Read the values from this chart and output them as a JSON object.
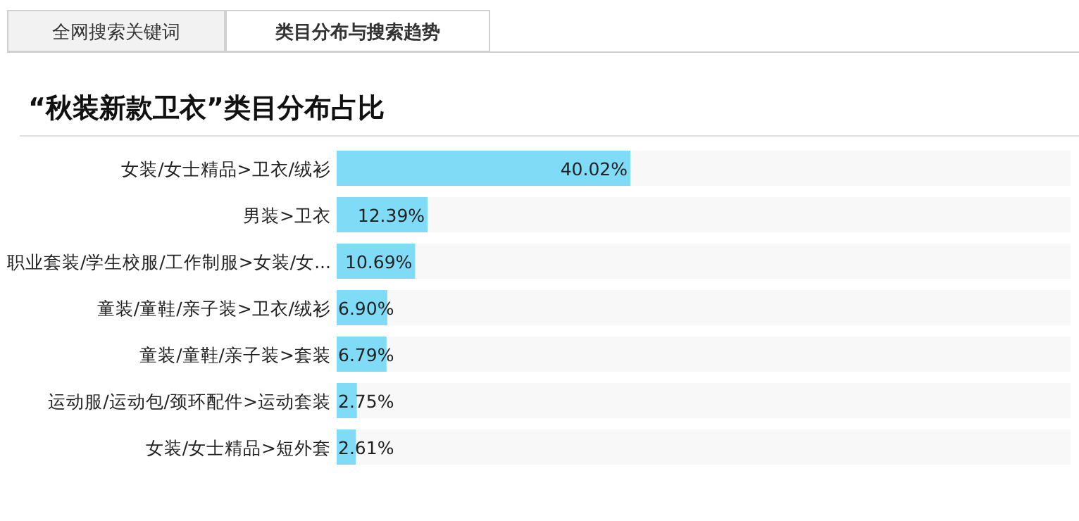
{
  "chart_data": {
    "type": "bar",
    "orientation": "horizontal",
    "title": "“秋装新款卫衣”类目分布占比",
    "annotations": [
      "全网搜索关键词",
      "类目分布与搜索趋势"
    ],
    "categories": [
      "女装/女士精品>卫衣/绒衫",
      "男装>卫衣",
      "职业套装/学生校服/工作制服>女装/女...",
      "童装/童鞋/亲子装>卫衣/绒衫",
      "童装/童鞋/亲子装>套装",
      "运动服/运动包/颈环配件>运动套装",
      "女装/女士精品>短外套"
    ],
    "values": [
      40.02,
      12.39,
      10.69,
      6.9,
      6.79,
      2.75,
      2.61
    ],
    "value_labels": [
      "40.02%",
      "12.39%",
      "10.69%",
      "6.90%",
      "6.79%",
      "2.75%",
      "2.61%"
    ],
    "color": "#80dbf7",
    "xlim": [
      0,
      100
    ]
  }
}
